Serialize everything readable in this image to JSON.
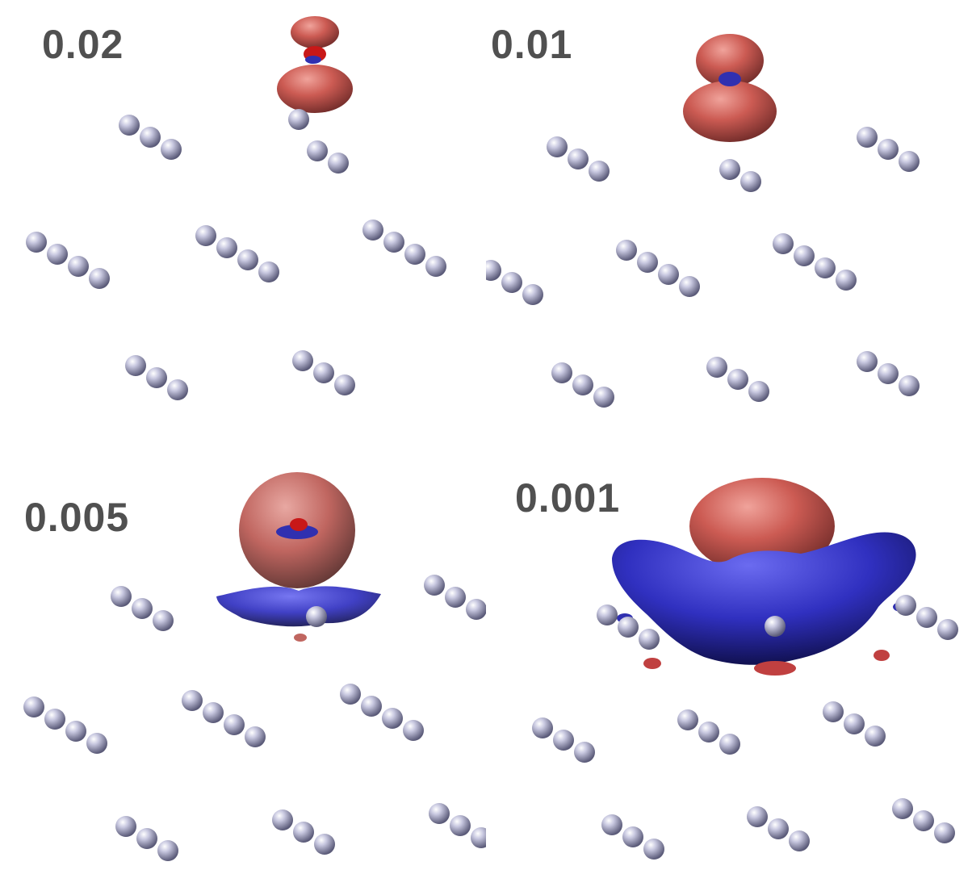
{
  "panels": [
    {
      "id": "tl",
      "isovalue_label": "0.02"
    },
    {
      "id": "tr",
      "isovalue_label": "0.01"
    },
    {
      "id": "bl",
      "isovalue_label": "0.005"
    },
    {
      "id": "br",
      "isovalue_label": "0.001"
    }
  ],
  "colors": {
    "background": "#ffffff",
    "label": "#505050",
    "atom": "#b8b8d8",
    "positive_lobe": "#d0605a",
    "negative_lobe": "#3a38c0"
  }
}
